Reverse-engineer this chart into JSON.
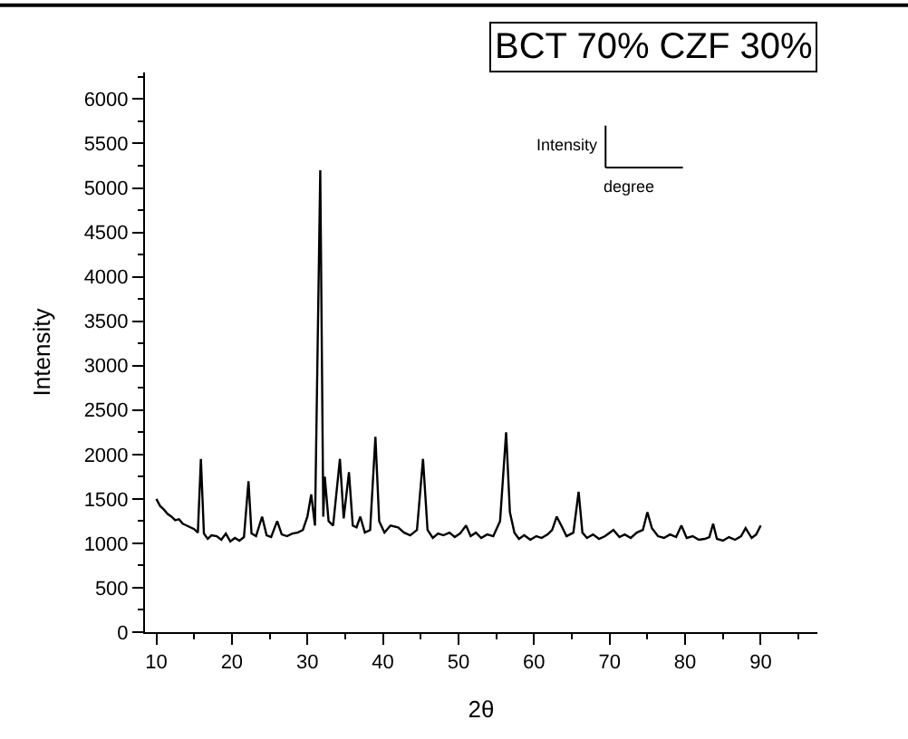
{
  "chart_data": {
    "type": "line",
    "title": "BCT 70% CZF 30%",
    "xlabel": "2θ",
    "ylabel": "Intensity",
    "annotations": [
      "Intensity",
      "degree"
    ],
    "xlim": [
      8.5,
      97.5
    ],
    "xticks": [
      10,
      20,
      30,
      40,
      50,
      60,
      70,
      80,
      90
    ],
    "ylim": [
      0,
      6300
    ],
    "yticks": [
      0,
      500,
      1000,
      1500,
      2000,
      2500,
      3000,
      3500,
      4000,
      4500,
      5000,
      5500,
      6000
    ],
    "legend": false,
    "marker": "none",
    "line_style": "solid",
    "series": [
      {
        "color": "#000000",
        "x": [
          10,
          10.5,
          11,
          11.5,
          12,
          12.5,
          13,
          13.5,
          14,
          14.5,
          15,
          15.5,
          15.9,
          16.3,
          16.8,
          17.3,
          18,
          18.6,
          19.2,
          19.8,
          20.4,
          21,
          21.6,
          22.2,
          22.6,
          23.2,
          24,
          24.6,
          25.2,
          26,
          26.6,
          27.3,
          28,
          28.7,
          29.4,
          30,
          30.5,
          31,
          31.7,
          32.1,
          32.3,
          32.8,
          33.4,
          34.3,
          34.8,
          35.5,
          36,
          36.5,
          37,
          37.6,
          38.3,
          39,
          39.5,
          40.2,
          41,
          42,
          42.8,
          43.6,
          44.5,
          45.3,
          45.9,
          46.6,
          47.3,
          48,
          48.8,
          49.5,
          50.2,
          51,
          51.6,
          52.3,
          53,
          53.8,
          54.6,
          55.5,
          56.3,
          56.8,
          57.4,
          58,
          58.7,
          59.5,
          60.3,
          61,
          61.8,
          62.4,
          63,
          63.6,
          64.3,
          65.2,
          65.9,
          66.4,
          67,
          67.8,
          68.6,
          69.4,
          70.5,
          71.3,
          72,
          72.8,
          73.6,
          74.4,
          75,
          75.6,
          76.4,
          77.2,
          78,
          78.8,
          79.5,
          80.2,
          81,
          81.8,
          82.6,
          83.2,
          83.7,
          84.2,
          85,
          85.8,
          86.6,
          87.4,
          88,
          88.8,
          89.4,
          90
        ],
        "values": [
          1500,
          1420,
          1380,
          1330,
          1300,
          1260,
          1270,
          1220,
          1200,
          1180,
          1160,
          1120,
          1950,
          1110,
          1050,
          1090,
          1080,
          1040,
          1110,
          1020,
          1060,
          1030,
          1070,
          1700,
          1110,
          1080,
          1300,
          1090,
          1070,
          1250,
          1100,
          1080,
          1110,
          1120,
          1150,
          1300,
          1550,
          1200,
          5200,
          1300,
          1750,
          1250,
          1200,
          1950,
          1280,
          1800,
          1200,
          1180,
          1300,
          1120,
          1150,
          2200,
          1250,
          1120,
          1200,
          1180,
          1120,
          1090,
          1150,
          1950,
          1150,
          1060,
          1110,
          1090,
          1120,
          1070,
          1110,
          1200,
          1080,
          1120,
          1060,
          1100,
          1080,
          1250,
          2250,
          1350,
          1120,
          1050,
          1090,
          1040,
          1080,
          1060,
          1100,
          1150,
          1300,
          1200,
          1080,
          1120,
          1580,
          1120,
          1060,
          1100,
          1050,
          1080,
          1150,
          1070,
          1100,
          1060,
          1120,
          1150,
          1350,
          1170,
          1080,
          1060,
          1100,
          1070,
          1200,
          1060,
          1080,
          1040,
          1050,
          1070,
          1220,
          1050,
          1030,
          1070,
          1040,
          1080,
          1170,
          1060,
          1100,
          1200
        ]
      }
    ]
  }
}
